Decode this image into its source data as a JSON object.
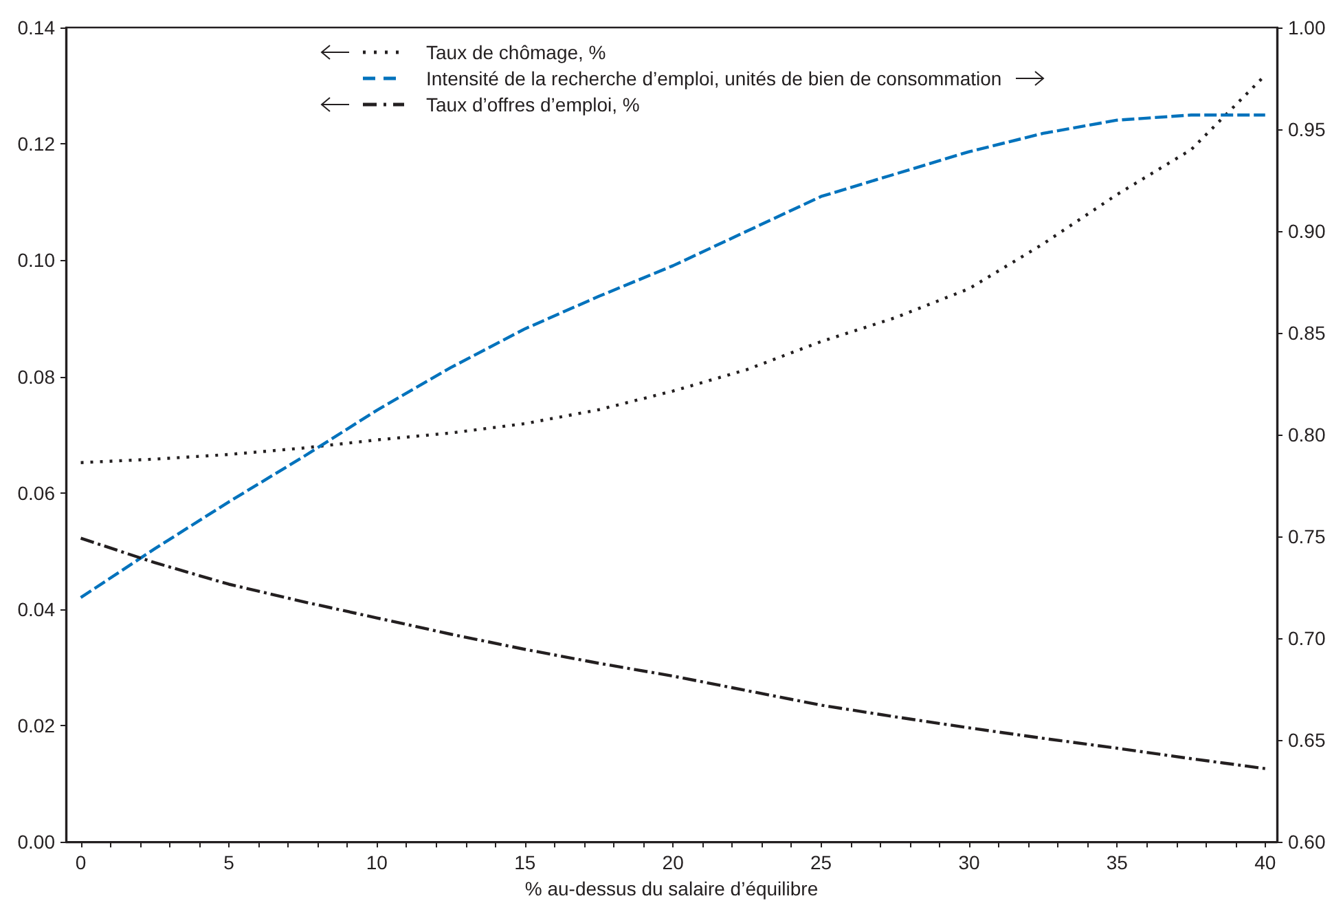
{
  "chart_data": {
    "type": "line",
    "xlabel": "% au-dessus du salaire d’équilibre",
    "x": [
      0,
      2.5,
      5,
      7.5,
      10,
      12.5,
      15,
      17.5,
      20,
      22.5,
      25,
      27.5,
      30,
      32.5,
      35,
      37.5,
      40
    ],
    "series": [
      {
        "name": "Taux de chômage, %",
        "color": "#231f20",
        "line_style": "dotted",
        "axis": "y",
        "values": [
          0.0652,
          0.0658,
          0.0666,
          0.0677,
          0.0691,
          0.0703,
          0.0719,
          0.0743,
          0.0775,
          0.0812,
          0.086,
          0.0901,
          0.0951,
          0.1028,
          0.1113,
          0.119,
          0.1318
        ]
      },
      {
        "name": "Intensité de la recherche d’emploi, unités de bien de consommation",
        "color": "#0072bc",
        "line_style": "dashed",
        "axis": "y2",
        "values": [
          0.72,
          0.744,
          0.767,
          0.789,
          0.812,
          0.833,
          0.852,
          0.868,
          0.883,
          0.9,
          0.917,
          0.928,
          0.939,
          0.948,
          0.9545,
          0.957,
          0.957
        ]
      },
      {
        "name": "Taux d’offres d’emploi, %",
        "color": "#231f20",
        "line_style": "dashdot",
        "axis": "y",
        "values": [
          0.0522,
          0.048,
          0.0443,
          0.0413,
          0.0385,
          0.0357,
          0.0331,
          0.0307,
          0.0285,
          0.026,
          0.0235,
          0.0215,
          0.0196,
          0.0178,
          0.0161,
          0.0143,
          0.0126
        ]
      }
    ],
    "xlim": [
      -0.5,
      40.4
    ],
    "xticks": [
      0,
      {
        "value": 1,
        "label": null
      },
      {
        "value": 2,
        "label": null
      },
      {
        "value": 3,
        "label": null
      },
      {
        "value": 4,
        "label": null
      },
      5,
      {
        "value": 6,
        "label": null
      },
      {
        "value": 7,
        "label": null
      },
      {
        "value": 8,
        "label": null
      },
      {
        "value": 9,
        "label": null
      },
      10,
      {
        "value": 11,
        "label": null
      },
      {
        "value": 12,
        "label": null
      },
      {
        "value": 13,
        "label": null
      },
      {
        "value": 14,
        "label": null
      },
      15,
      {
        "value": 16,
        "label": null
      },
      {
        "value": 17,
        "label": null
      },
      {
        "value": 18,
        "label": null
      },
      {
        "value": 19,
        "label": null
      },
      20,
      {
        "value": 21,
        "label": null
      },
      {
        "value": 22,
        "label": null
      },
      {
        "value": 23,
        "label": null
      },
      {
        "value": 24,
        "label": null
      },
      25,
      {
        "value": 26,
        "label": null
      },
      {
        "value": 27,
        "label": null
      },
      {
        "value": 28,
        "label": null
      },
      {
        "value": 29,
        "label": null
      },
      30,
      {
        "value": 31,
        "label": null
      },
      {
        "value": 32,
        "label": null
      },
      {
        "value": 33,
        "label": null
      },
      {
        "value": 34,
        "label": null
      },
      35,
      {
        "value": 36,
        "label": null
      },
      {
        "value": 37,
        "label": null
      },
      {
        "value": 38,
        "label": null
      },
      {
        "value": 39,
        "label": null
      },
      40
    ],
    "ylim": [
      0,
      0.14
    ],
    "yticks": [
      {
        "value": 0,
        "label": "0.00"
      },
      {
        "value": 0.02,
        "label": "0.02"
      },
      {
        "value": 0.04,
        "label": "0.04"
      },
      {
        "value": 0.06,
        "label": "0.06"
      },
      {
        "value": 0.08,
        "label": "0.08"
      },
      {
        "value": 0.1,
        "label": "0.10"
      },
      {
        "value": 0.12,
        "label": "0.12"
      },
      0.14
    ],
    "y2lim": [
      0.6,
      1.0
    ],
    "y2ticks": [
      {
        "value": 0.6,
        "label": "0.60"
      },
      0.65,
      {
        "value": 0.7,
        "label": "0.70"
      },
      0.75,
      {
        "value": 0.8,
        "label": "0.80"
      },
      0.85,
      {
        "value": 0.9,
        "label": "0.90"
      },
      0.95,
      {
        "value": 1.0,
        "label": "1.00"
      }
    ],
    "grid": false,
    "legend": "top",
    "marker": "none"
  }
}
